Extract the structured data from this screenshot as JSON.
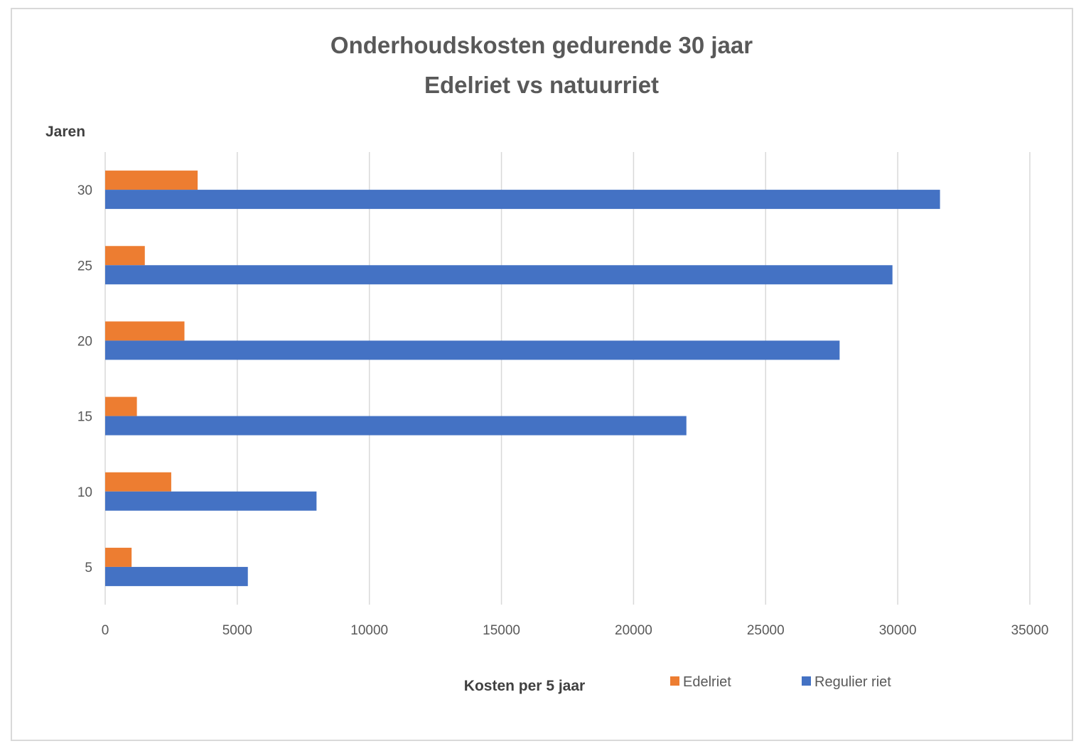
{
  "chart_data": {
    "type": "bar",
    "orientation": "horizontal",
    "title_lines": [
      "Onderhoudskosten gedurende 30 jaar",
      "Edelriet vs natuurriet"
    ],
    "ylabel": "Jaren",
    "xlabel": "Kosten per 5 jaar",
    "categories": [
      "5",
      "10",
      "15",
      "20",
      "25",
      "30"
    ],
    "series": [
      {
        "name": "Edelriet",
        "color": "#ED7D31",
        "values": [
          1000,
          2500,
          1200,
          3000,
          1500,
          3500
        ]
      },
      {
        "name": "Regulier riet",
        "color": "#4472C4",
        "values": [
          5400,
          8000,
          22000,
          27800,
          29800,
          31600
        ]
      }
    ],
    "xlim": [
      0,
      35000
    ],
    "x_ticks": [
      0,
      5000,
      10000,
      15000,
      20000,
      25000,
      30000,
      35000
    ],
    "grid": true,
    "legend_position": "bottom-right"
  }
}
